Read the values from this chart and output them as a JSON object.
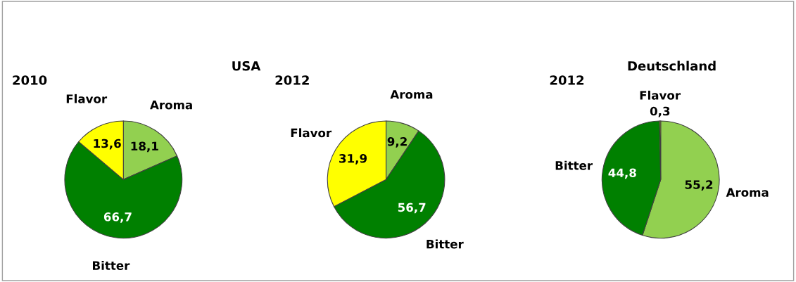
{
  "chart_data": [
    {
      "type": "pie",
      "title": "2010",
      "annotations": [
        "USA"
      ],
      "categories": [
        "Aroma",
        "Bitter",
        "Flavor"
      ],
      "values": [
        18.1,
        66.7,
        13.6
      ],
      "colors": [
        "#92d050",
        "#008000",
        "#ffff00"
      ],
      "value_labels": [
        "18,1",
        "66,7",
        "13,6"
      ]
    },
    {
      "type": "pie",
      "title": "2012",
      "categories": [
        "Aroma",
        "Bitter",
        "Flavor"
      ],
      "values": [
        9.2,
        56.7,
        31.9
      ],
      "colors": [
        "#92d050",
        "#008000",
        "#ffff00"
      ],
      "value_labels": [
        "9,2",
        "56,7",
        "31,9"
      ]
    },
    {
      "type": "pie",
      "title": "2012",
      "annotations": [
        "Deutschland"
      ],
      "categories": [
        "Aroma",
        "Bitter",
        "Flavor"
      ],
      "values": [
        55.2,
        44.8,
        0.3
      ],
      "colors": [
        "#92d050",
        "#008000",
        "#ffff00"
      ],
      "value_labels": [
        "55,2",
        "44,8",
        "0,3"
      ]
    }
  ]
}
